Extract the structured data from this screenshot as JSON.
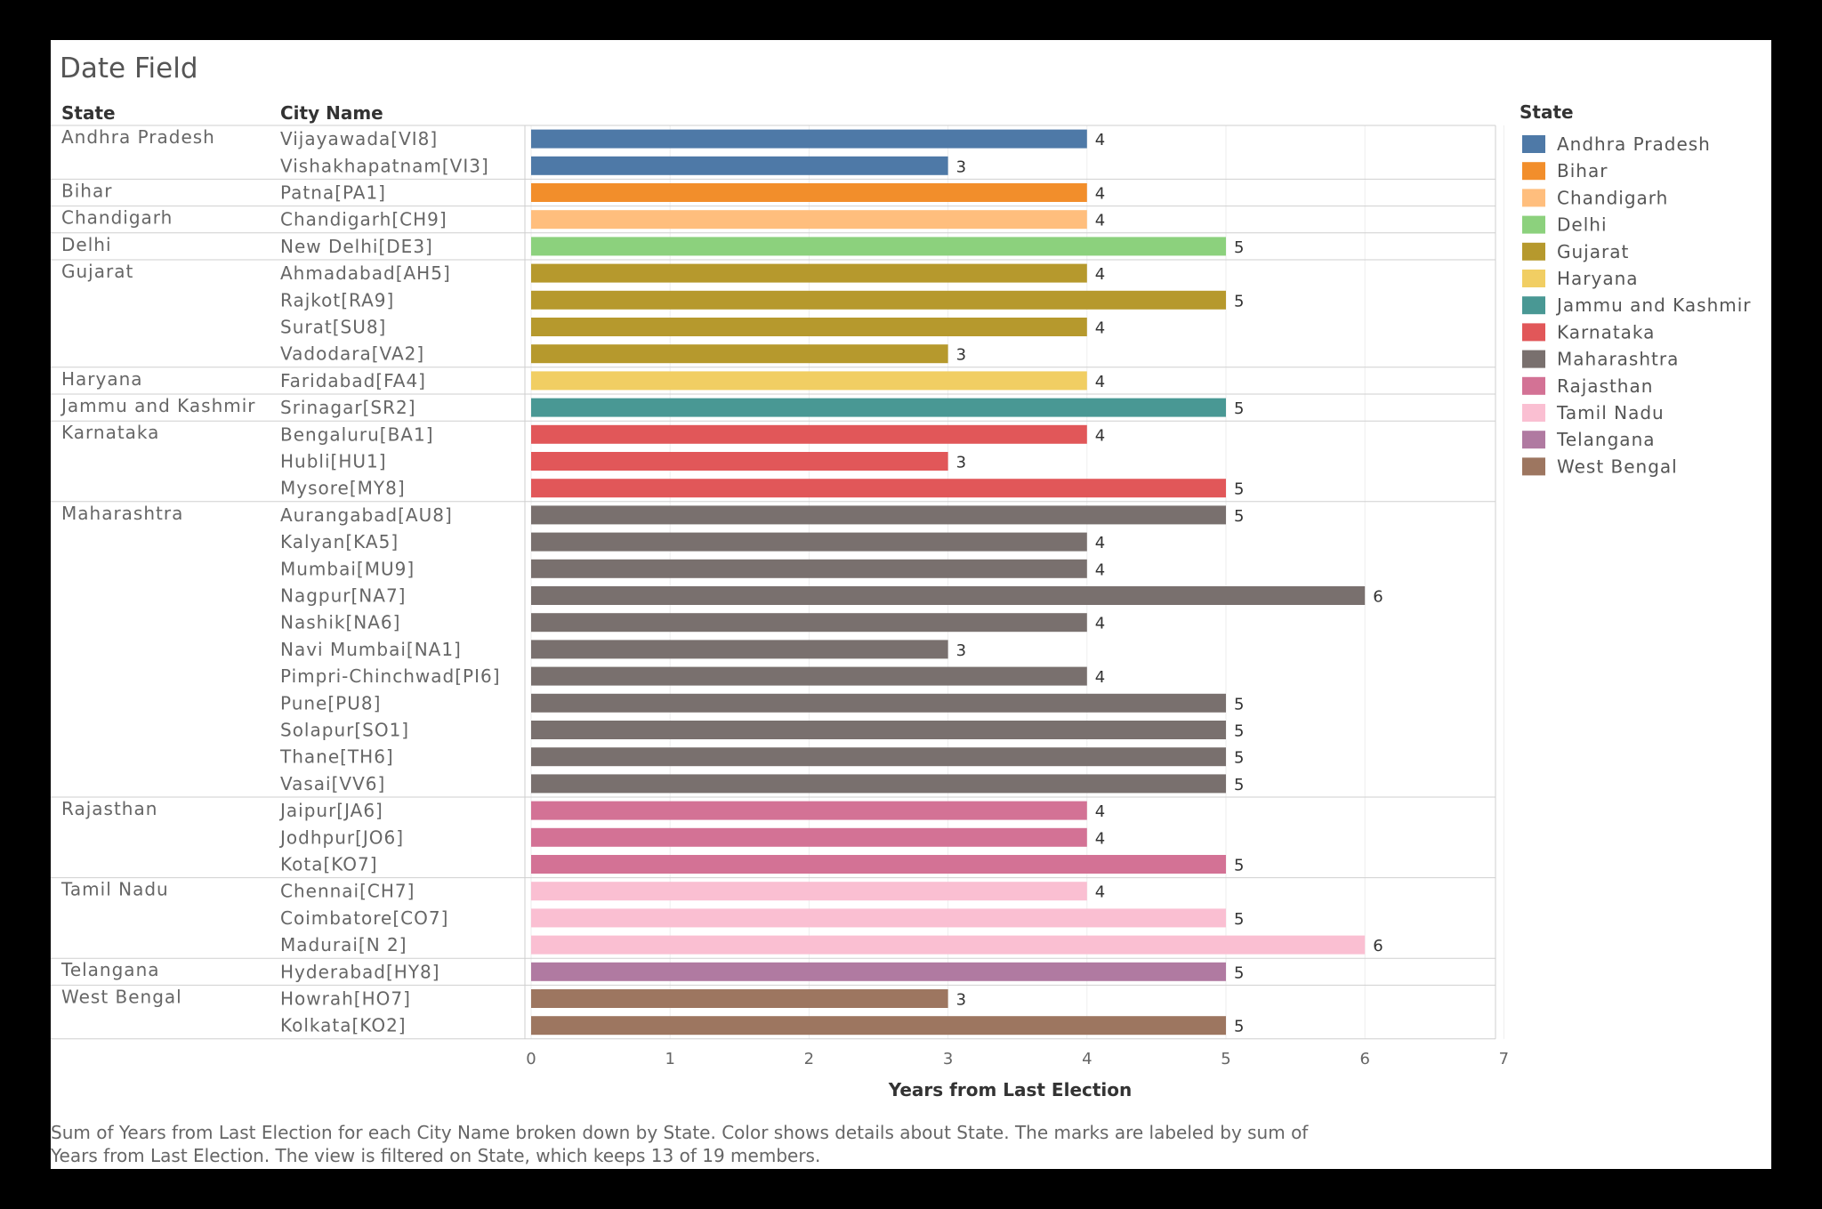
{
  "chart_data": {
    "type": "bar",
    "orientation": "horizontal",
    "title": "Date Field",
    "row_headers": {
      "state": "State",
      "city": "City Name"
    },
    "xlabel": "Years from Last Election",
    "xlim": [
      0,
      7
    ],
    "xticks": [
      "0",
      "1",
      "2",
      "3",
      "4",
      "5",
      "6",
      "7"
    ],
    "legend": {
      "title": "State",
      "placement": "right",
      "items": [
        {
          "label": "Andhra Pradesh",
          "color": "#4E79A7"
        },
        {
          "label": "Bihar",
          "color": "#F28E2B"
        },
        {
          "label": "Chandigarh",
          "color": "#FFBE7D"
        },
        {
          "label": "Delhi",
          "color": "#8CD17D"
        },
        {
          "label": "Gujarat",
          "color": "#B6992D"
        },
        {
          "label": "Haryana",
          "color": "#F1CE63"
        },
        {
          "label": "Jammu and Kashmir",
          "color": "#499894"
        },
        {
          "label": "Karnataka",
          "color": "#E15759"
        },
        {
          "label": "Maharashtra",
          "color": "#79706E"
        },
        {
          "label": "Rajasthan",
          "color": "#D37295"
        },
        {
          "label": "Tamil Nadu",
          "color": "#FABFD2"
        },
        {
          "label": "Telangana",
          "color": "#B07AA1"
        },
        {
          "label": "West Bengal",
          "color": "#9D7660"
        }
      ]
    },
    "groups": [
      {
        "state": "Andhra Pradesh",
        "cities": [
          {
            "name": "Vijayawada[VI8]",
            "value": 4
          },
          {
            "name": "Vishakhapatnam[VI3]",
            "value": 3
          }
        ]
      },
      {
        "state": "Bihar",
        "cities": [
          {
            "name": "Patna[PA1]",
            "value": 4
          }
        ]
      },
      {
        "state": "Chandigarh",
        "cities": [
          {
            "name": "Chandigarh[CH9]",
            "value": 4
          }
        ]
      },
      {
        "state": "Delhi",
        "cities": [
          {
            "name": "New Delhi[DE3]",
            "value": 5
          }
        ]
      },
      {
        "state": "Gujarat",
        "cities": [
          {
            "name": "Ahmadabad[AH5]",
            "value": 4
          },
          {
            "name": "Rajkot[RA9]",
            "value": 5
          },
          {
            "name": "Surat[SU8]",
            "value": 4
          },
          {
            "name": "Vadodara[VA2]",
            "value": 3
          }
        ]
      },
      {
        "state": "Haryana",
        "cities": [
          {
            "name": "Faridabad[FA4]",
            "value": 4
          }
        ]
      },
      {
        "state": "Jammu and Kashmir",
        "cities": [
          {
            "name": "Srinagar[SR2]",
            "value": 5
          }
        ]
      },
      {
        "state": "Karnataka",
        "cities": [
          {
            "name": "Bengaluru[BA1]",
            "value": 4
          },
          {
            "name": "Hubli[HU1]",
            "value": 3
          },
          {
            "name": "Mysore[MY8]",
            "value": 5
          }
        ]
      },
      {
        "state": "Maharashtra",
        "cities": [
          {
            "name": "Aurangabad[AU8]",
            "value": 5
          },
          {
            "name": "Kalyan[KA5]",
            "value": 4
          },
          {
            "name": "Mumbai[MU9]",
            "value": 4
          },
          {
            "name": "Nagpur[NA7]",
            "value": 6
          },
          {
            "name": "Nashik[NA6]",
            "value": 4
          },
          {
            "name": "Navi Mumbai[NA1]",
            "value": 3
          },
          {
            "name": "Pimpri-Chinchwad[PI6]",
            "value": 4
          },
          {
            "name": "Pune[PU8]",
            "value": 5
          },
          {
            "name": "Solapur[SO1]",
            "value": 5
          },
          {
            "name": "Thane[TH6]",
            "value": 5
          },
          {
            "name": "Vasai[VV6]",
            "value": 5
          }
        ]
      },
      {
        "state": "Rajasthan",
        "cities": [
          {
            "name": "Jaipur[JA6]",
            "value": 4
          },
          {
            "name": "Jodhpur[JO6]",
            "value": 4
          },
          {
            "name": "Kota[KO7]",
            "value": 5
          }
        ]
      },
      {
        "state": "Tamil Nadu",
        "cities": [
          {
            "name": "Chennai[CH7]",
            "value": 4
          },
          {
            "name": "Coimbatore[CO7]",
            "value": 5
          },
          {
            "name": "Madurai[N 2]",
            "value": 6
          }
        ]
      },
      {
        "state": "Telangana",
        "cities": [
          {
            "name": "Hyderabad[HY8]",
            "value": 5
          }
        ]
      },
      {
        "state": "West Bengal",
        "cities": [
          {
            "name": "Howrah[HO7]",
            "value": 3
          },
          {
            "name": "Kolkata[KO2]",
            "value": 5
          }
        ]
      }
    ],
    "caption_lines": [
      "Sum of Years from Last Election for each City Name broken down by State.  Color shows details about State.  The marks are labeled by sum of",
      "Years from Last Election. The view is filtered on State, which keeps 13 of 19 members."
    ]
  }
}
